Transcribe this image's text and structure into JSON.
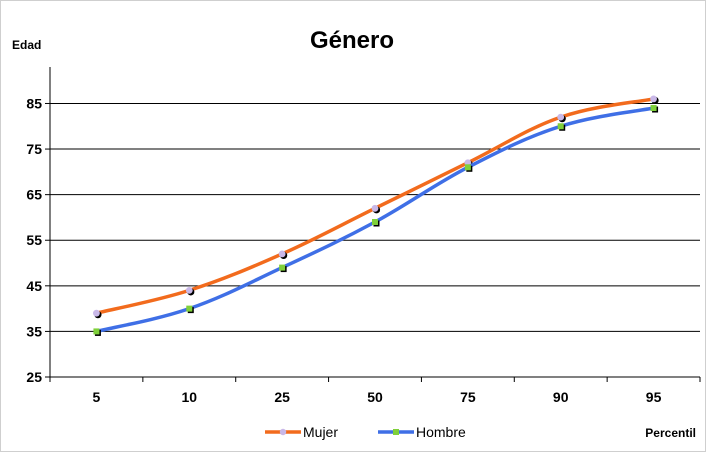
{
  "chart_data": {
    "type": "line",
    "title": "Género",
    "ylabel": "Edad",
    "xlabel": "Percentil",
    "categories": [
      "5",
      "10",
      "25",
      "50",
      "75",
      "90",
      "95"
    ],
    "yticks": [
      "25",
      "35",
      "45",
      "55",
      "65",
      "75",
      "85"
    ],
    "ylim": [
      25,
      93
    ],
    "grid": true,
    "legend_position": "bottom",
    "series": [
      {
        "name": "Mujer",
        "values": [
          39,
          44,
          52,
          62,
          72,
          82,
          86
        ],
        "color": "#F26B1D",
        "marker_color": "#C9B8E8"
      },
      {
        "name": "Hombre",
        "values": [
          35,
          40,
          49,
          59,
          71,
          80,
          84
        ],
        "color": "#3F6FE6",
        "marker_color": "#7FD03A"
      }
    ]
  }
}
